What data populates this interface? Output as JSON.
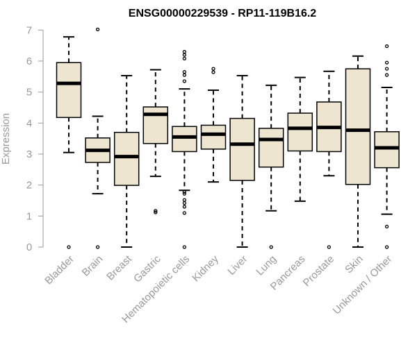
{
  "chart_data": {
    "type": "boxplot",
    "title": "ENSG00000229539 - RP11-119B16.2",
    "xlabel": "",
    "ylabel": "Expression",
    "ylim": [
      0,
      7
    ],
    "yticks": [
      0,
      1,
      2,
      3,
      4,
      5,
      6,
      7
    ],
    "box_fill": "#ede5cf",
    "categories": [
      "Bladder",
      "Brain",
      "Breast",
      "Gastric",
      "Hematopoietic cells",
      "Kidney",
      "Liver",
      "Lung",
      "Pancreas",
      "Prostate",
      "Skin",
      "Unknown / Other"
    ],
    "boxes": [
      {
        "min": 3.05,
        "q1": 4.18,
        "median": 5.28,
        "q3": 5.95,
        "max": 6.78,
        "outliers": [
          0
        ]
      },
      {
        "min": 1.72,
        "q1": 2.73,
        "median": 3.12,
        "q3": 3.52,
        "max": 4.22,
        "outliers": [
          0,
          7.02
        ]
      },
      {
        "min": 0.0,
        "q1": 1.99,
        "median": 2.92,
        "q3": 3.7,
        "max": 5.53,
        "outliers": []
      },
      {
        "min": 2.28,
        "q1": 3.34,
        "median": 4.28,
        "q3": 4.52,
        "max": 5.72,
        "outliers": [
          1.12,
          1.17
        ]
      },
      {
        "min": 1.83,
        "q1": 3.08,
        "median": 3.55,
        "q3": 3.89,
        "max": 5.1,
        "outliers": [
          0,
          1.1,
          1.3,
          1.42,
          1.52,
          1.72,
          1.78,
          5.35,
          5.55,
          5.65,
          6.08,
          6.2,
          6.3
        ]
      },
      {
        "min": 2.1,
        "q1": 3.16,
        "median": 3.64,
        "q3": 3.93,
        "max": 5.06,
        "outliers": [
          5.64,
          5.75
        ]
      },
      {
        "min": 0.0,
        "q1": 2.15,
        "median": 3.32,
        "q3": 4.15,
        "max": 5.53,
        "outliers": []
      },
      {
        "min": 1.17,
        "q1": 2.58,
        "median": 3.47,
        "q3": 3.83,
        "max": 5.22,
        "outliers": [
          0
        ]
      },
      {
        "min": 1.48,
        "q1": 3.1,
        "median": 3.83,
        "q3": 4.32,
        "max": 5.47,
        "outliers": []
      },
      {
        "min": 2.3,
        "q1": 3.08,
        "median": 3.86,
        "q3": 4.68,
        "max": 5.67,
        "outliers": [
          0
        ]
      },
      {
        "min": 0.0,
        "q1": 2.02,
        "median": 3.77,
        "q3": 5.75,
        "max": 6.16,
        "outliers": []
      },
      {
        "min": 1.06,
        "q1": 2.56,
        "median": 3.2,
        "q3": 3.72,
        "max": 5.15,
        "outliers": [
          0,
          0.66,
          5.55,
          5.75,
          5.95,
          6.48
        ]
      }
    ]
  }
}
